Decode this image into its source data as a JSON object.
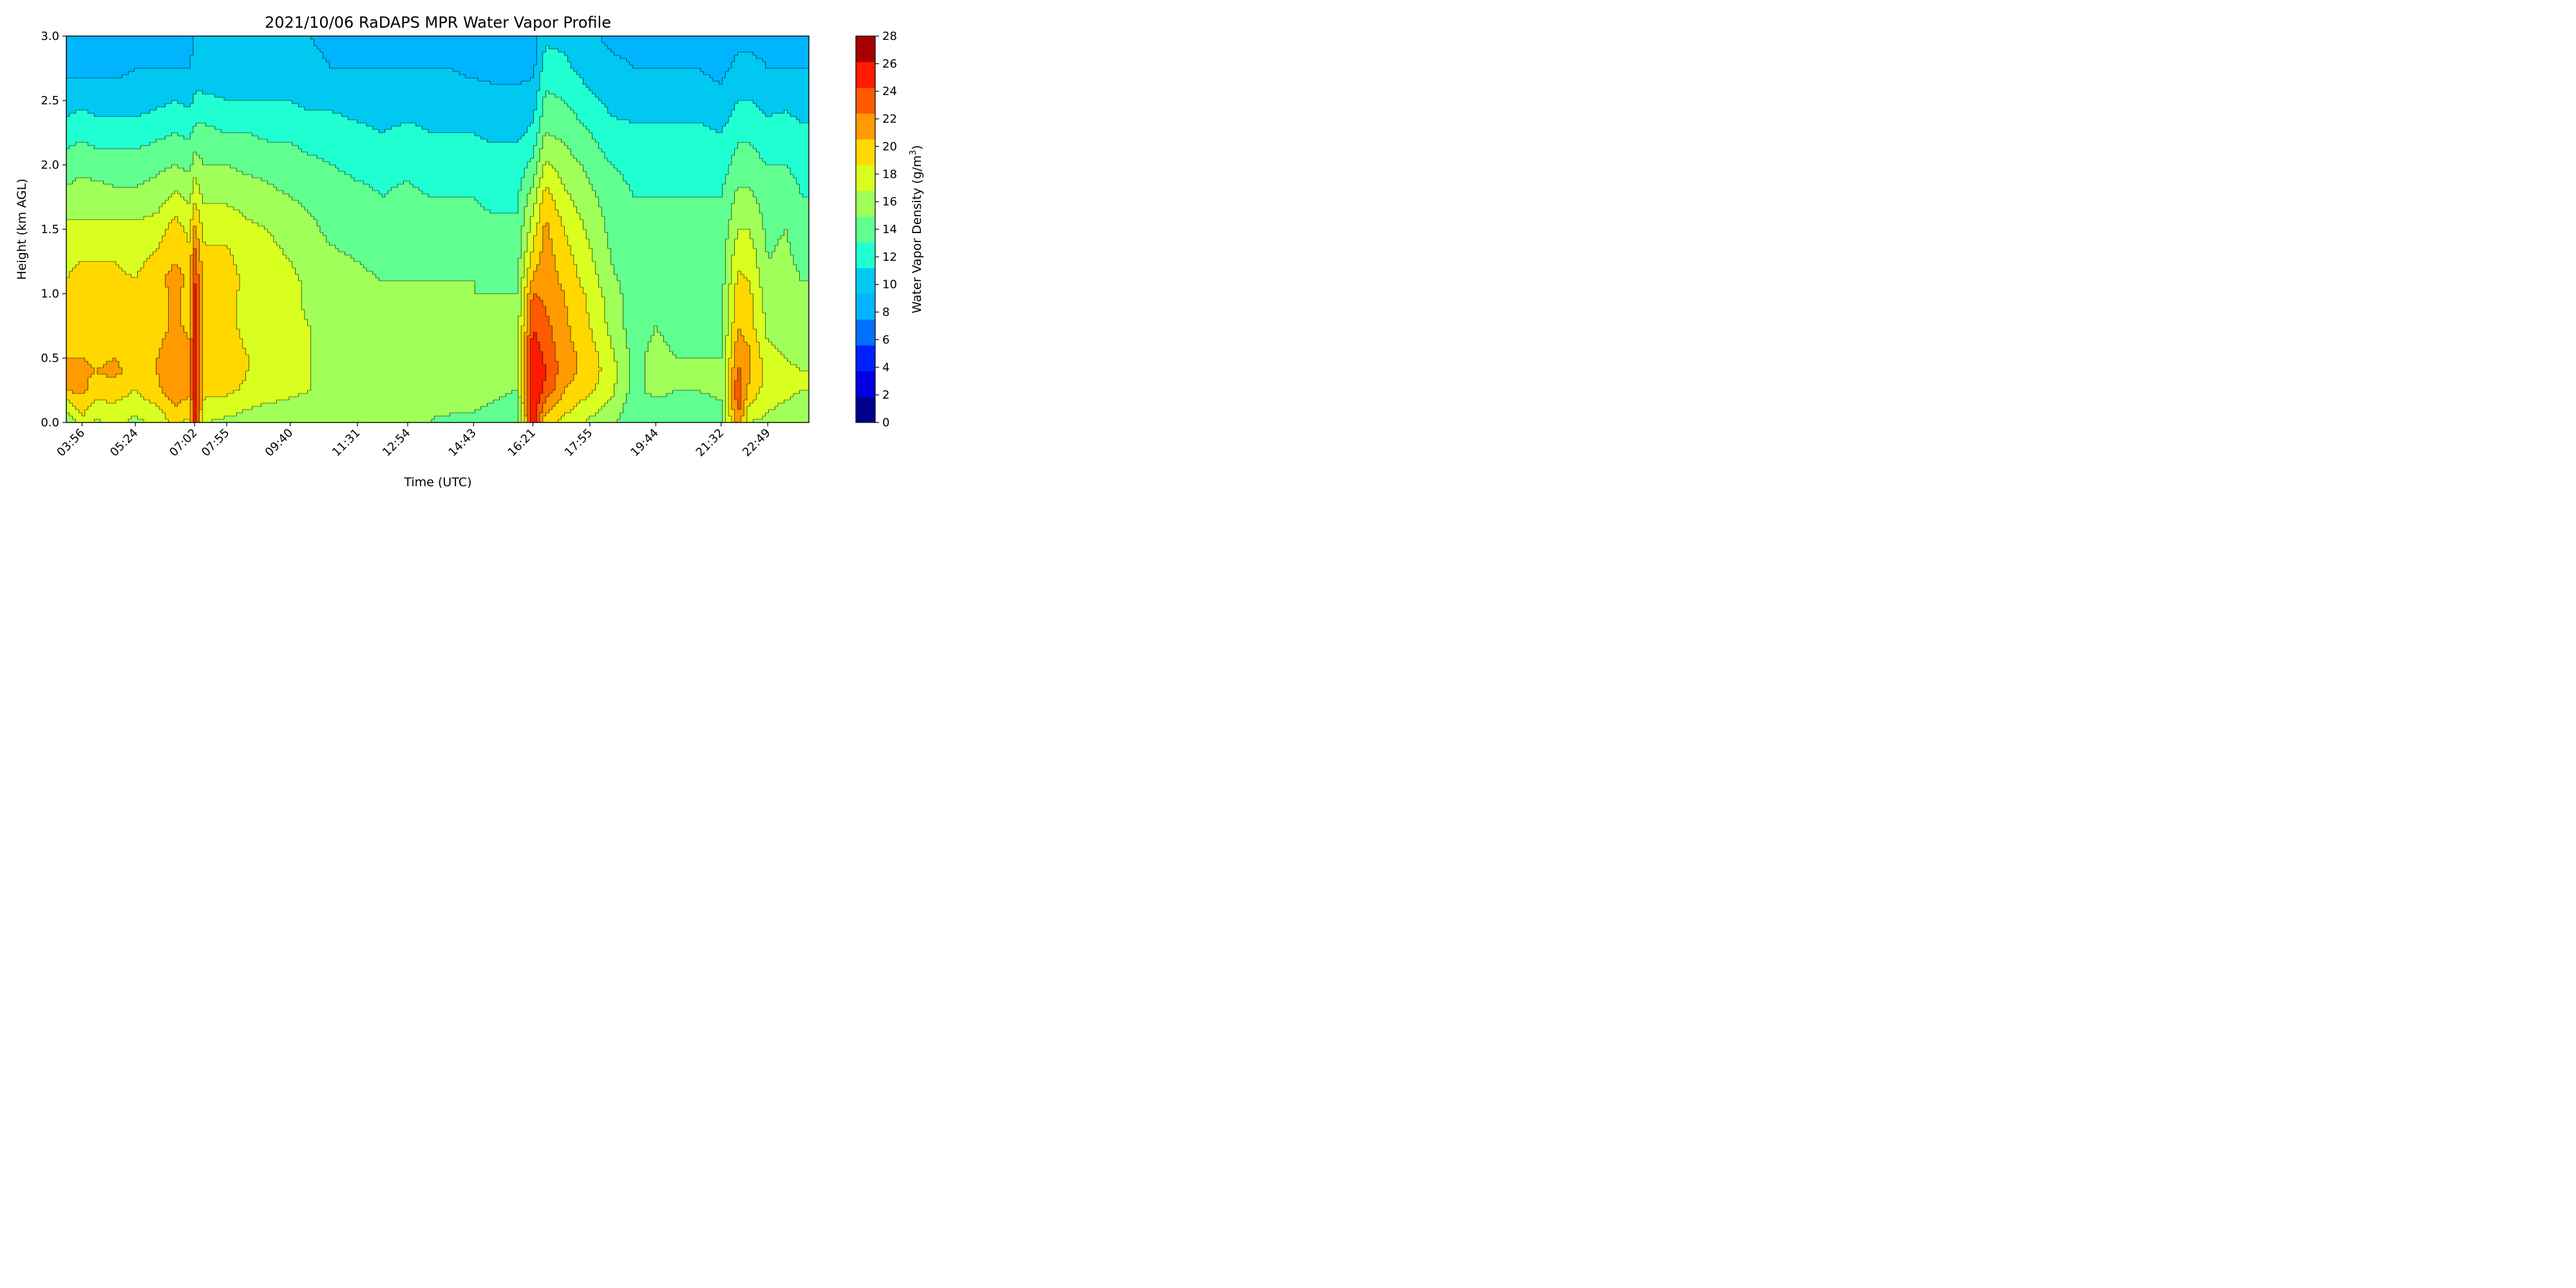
{
  "chart_data": {
    "type": "heatmap",
    "subtype": "filled-contour",
    "title": "2021/10/06 RaDAPS MPR Water Vapor Profile",
    "xlabel": "Time (UTC)",
    "ylabel": "Height (km AGL)",
    "ylim": [
      0.0,
      3.0
    ],
    "xlim": [
      "03:30",
      "23:57"
    ],
    "x_tick_labels": [
      "03:56",
      "05:24",
      "07:02",
      "07:55",
      "09:40",
      "11:31",
      "12:54",
      "14:43",
      "16:21",
      "17:55",
      "19:44",
      "21:32",
      "22:49"
    ],
    "y_tick_labels": [
      "0.0",
      "0.5",
      "1.0",
      "1.5",
      "2.0",
      "2.5",
      "3.0"
    ],
    "grid": false,
    "colorbar": {
      "label_main": "Water Vapor Density (g/m",
      "label_sup": "3",
      "label_end": ")",
      "levels": [
        0,
        2,
        4,
        6,
        8,
        10,
        12,
        14,
        16,
        18,
        20,
        22,
        24,
        26,
        28
      ],
      "tick_labels": [
        "0",
        "2",
        "4",
        "6",
        "8",
        "10",
        "12",
        "14",
        "16",
        "18",
        "20",
        "22",
        "24",
        "26",
        "28"
      ],
      "colors": [
        "#00008b",
        "#0000e0",
        "#0020ff",
        "#0070ff",
        "#00b4ff",
        "#00c8f0",
        "#20ffd2",
        "#60ff90",
        "#a0ff58",
        "#d8ff20",
        "#ffd800",
        "#ff9a00",
        "#ff5a00",
        "#ff1a00",
        "#a80000"
      ],
      "colormap": "jet"
    },
    "profiles_hour_UTC": [
      3.5,
      3.93,
      4.3,
      4.8,
      5.4,
      6.0,
      6.5,
      6.9,
      7.03,
      7.3,
      7.92,
      8.5,
      9.0,
      9.67,
      10.2,
      10.8,
      11.52,
      12.2,
      12.9,
      13.5,
      14.1,
      14.72,
      15.3,
      15.9,
      16.35,
      16.7,
      17.2,
      17.92,
      18.5,
      19.1,
      19.73,
      20.3,
      20.9,
      21.53,
      22.0,
      22.3,
      22.82,
      23.3,
      23.75
    ],
    "heights_km": [
      0.0,
      0.25,
      0.4,
      0.5,
      0.75,
      1.0,
      1.1,
      1.25,
      1.5,
      1.75,
      2.0,
      2.25,
      2.5,
      2.75,
      3.0
    ],
    "density_g_m3": [
      [
        15.5,
        22.0,
        22.5,
        22.0,
        20.5,
        20.0,
        20.0,
        19.5,
        18.5,
        16.5,
        15.0,
        13.0,
        11.0,
        9.5,
        9.0
      ],
      [
        19.5,
        22.5,
        22.5,
        22.0,
        20.5,
        21.0,
        21.5,
        20.0,
        18.5,
        17.0,
        15.5,
        13.5,
        11.5,
        9.5,
        9.0
      ],
      [
        17.5,
        21.0,
        22.0,
        21.5,
        20.5,
        20.5,
        21.0,
        20.0,
        18.5,
        17.0,
        15.0,
        13.0,
        11.0,
        9.5,
        9.0
      ],
      [
        18.5,
        21.0,
        22.5,
        22.0,
        20.5,
        20.0,
        20.5,
        20.0,
        18.5,
        16.5,
        15.0,
        13.0,
        11.0,
        9.5,
        9.0
      ],
      [
        17.5,
        20.0,
        21.5,
        21.0,
        20.0,
        20.0,
        20.0,
        19.5,
        18.5,
        16.5,
        15.0,
        13.0,
        11.0,
        10.0,
        9.5
      ],
      [
        18.5,
        21.5,
        22.0,
        22.0,
        21.0,
        21.0,
        21.5,
        20.5,
        19.0,
        17.0,
        15.5,
        13.5,
        11.5,
        10.0,
        9.5
      ],
      [
        20.5,
        23.5,
        24.0,
        23.5,
        22.5,
        22.5,
        23.0,
        22.0,
        21.0,
        18.5,
        16.0,
        14.0,
        12.0,
        10.0,
        9.5
      ],
      [
        19.5,
        22.5,
        23.0,
        22.5,
        21.5,
        21.0,
        21.5,
        20.5,
        19.5,
        17.5,
        15.5,
        13.5,
        11.5,
        10.0,
        9.5
      ],
      [
        27.0,
        28.0,
        28.0,
        27.5,
        27.0,
        26.5,
        26.0,
        25.0,
        22.5,
        19.5,
        17.0,
        14.5,
        12.5,
        10.5,
        10.0
      ],
      [
        18.0,
        20.5,
        21.5,
        21.0,
        20.5,
        20.5,
        21.0,
        20.5,
        19.5,
        17.5,
        16.0,
        14.5,
        12.5,
        10.5,
        10.0
      ],
      [
        17.5,
        20.5,
        21.5,
        21.0,
        20.5,
        20.5,
        21.0,
        20.5,
        19.5,
        17.5,
        16.0,
        14.0,
        12.0,
        10.5,
        10.0
      ],
      [
        17.0,
        19.5,
        20.0,
        20.0,
        19.5,
        19.5,
        19.5,
        19.0,
        18.5,
        17.0,
        15.5,
        14.0,
        12.0,
        10.5,
        10.0
      ],
      [
        16.5,
        19.0,
        19.5,
        19.0,
        19.0,
        19.0,
        19.0,
        18.5,
        18.0,
        16.5,
        15.5,
        13.5,
        12.0,
        10.5,
        10.0
      ],
      [
        16.5,
        18.5,
        18.5,
        18.5,
        18.5,
        18.5,
        18.5,
        18.0,
        17.5,
        16.0,
        15.0,
        13.5,
        12.0,
        10.5,
        10.0
      ],
      [
        16.5,
        18.0,
        18.0,
        18.0,
        18.0,
        17.5,
        17.5,
        17.0,
        16.5,
        15.5,
        14.5,
        13.0,
        11.5,
        10.5,
        10.0
      ],
      [
        16.0,
        17.5,
        17.5,
        17.5,
        17.5,
        17.0,
        17.0,
        16.5,
        15.5,
        15.0,
        14.0,
        13.0,
        11.5,
        10.0,
        9.5
      ],
      [
        16.0,
        17.0,
        17.0,
        17.0,
        17.0,
        16.5,
        16.5,
        16.0,
        15.0,
        14.5,
        13.5,
        12.5,
        11.0,
        10.0,
        9.5
      ],
      [
        16.0,
        17.0,
        17.0,
        17.0,
        17.0,
        16.5,
        16.0,
        15.5,
        14.5,
        14.0,
        13.5,
        12.0,
        11.0,
        10.0,
        9.5
      ],
      [
        16.0,
        17.0,
        17.0,
        17.0,
        17.0,
        16.5,
        16.0,
        15.5,
        15.0,
        14.5,
        13.5,
        12.5,
        11.0,
        10.0,
        9.5
      ],
      [
        16.0,
        16.5,
        16.5,
        16.5,
        16.5,
        16.0,
        16.0,
        15.5,
        14.5,
        14.0,
        13.0,
        12.0,
        11.0,
        10.0,
        9.5
      ],
      [
        15.5,
        17.5,
        18.0,
        18.0,
        17.5,
        16.5,
        16.0,
        15.5,
        14.5,
        14.0,
        13.0,
        12.0,
        11.0,
        10.0,
        9.0
      ],
      [
        15.5,
        17.0,
        17.5,
        17.5,
        16.5,
        16.0,
        16.0,
        15.0,
        14.5,
        14.0,
        13.0,
        12.0,
        11.0,
        9.5,
        9.0
      ],
      [
        15.0,
        16.5,
        17.0,
        17.0,
        16.5,
        16.0,
        15.5,
        15.0,
        14.5,
        13.5,
        13.0,
        11.5,
        10.5,
        9.5,
        9.0
      ],
      [
        14.5,
        16.0,
        16.5,
        16.5,
        16.5,
        16.0,
        15.5,
        15.0,
        14.5,
        13.5,
        13.0,
        11.5,
        10.5,
        9.5,
        9.0
      ],
      [
        27.5,
        28.0,
        28.0,
        27.5,
        26.0,
        24.0,
        22.5,
        21.0,
        19.0,
        17.0,
        14.5,
        12.5,
        11.0,
        9.5,
        9.0
      ],
      [
        20.5,
        25.5,
        26.0,
        25.5,
        24.5,
        23.5,
        23.5,
        23.0,
        22.5,
        21.0,
        18.5,
        16.0,
        14.5,
        13.0,
        11.5
      ],
      [
        19.5,
        22.0,
        23.0,
        23.0,
        22.5,
        22.0,
        21.5,
        21.0,
        20.0,
        18.5,
        17.0,
        15.5,
        14.0,
        12.5,
        11.5
      ],
      [
        17.5,
        20.5,
        21.0,
        21.0,
        20.0,
        19.5,
        19.0,
        18.5,
        17.5,
        16.5,
        15.5,
        14.0,
        12.5,
        11.0,
        10.5
      ],
      [
        16.5,
        18.5,
        19.0,
        18.5,
        17.5,
        17.0,
        16.5,
        16.0,
        15.5,
        15.0,
        14.0,
        12.5,
        11.5,
        10.5,
        9.5
      ],
      [
        14.5,
        15.5,
        15.5,
        15.5,
        15.0,
        15.0,
        15.0,
        14.5,
        14.5,
        14.0,
        13.5,
        12.5,
        11.0,
        10.0,
        9.5
      ],
      [
        14.5,
        16.5,
        16.5,
        16.5,
        16.0,
        15.5,
        15.5,
        15.0,
        14.5,
        14.0,
        13.5,
        12.5,
        11.0,
        10.0,
        9.5
      ],
      [
        14.5,
        16.0,
        16.0,
        16.0,
        15.5,
        15.5,
        15.0,
        15.0,
        14.5,
        14.0,
        13.5,
        12.5,
        11.0,
        10.0,
        9.5
      ],
      [
        14.5,
        16.0,
        16.5,
        16.0,
        15.5,
        15.0,
        15.0,
        14.5,
        14.5,
        14.0,
        13.5,
        12.5,
        11.0,
        10.0,
        9.5
      ],
      [
        15.0,
        16.5,
        16.5,
        16.0,
        15.5,
        15.5,
        15.0,
        15.0,
        14.5,
        14.0,
        13.0,
        12.0,
        10.5,
        9.5,
        9.0
      ],
      [
        24.0,
        25.5,
        24.5,
        23.5,
        22.0,
        21.0,
        20.5,
        19.5,
        18.0,
        16.5,
        15.0,
        13.5,
        12.0,
        10.5,
        9.5
      ],
      [
        18.0,
        21.5,
        22.5,
        22.5,
        21.0,
        20.5,
        20.0,
        19.5,
        18.0,
        16.5,
        15.0,
        13.5,
        12.0,
        10.5,
        9.5
      ],
      [
        17.5,
        19.0,
        19.0,
        18.5,
        17.5,
        17.0,
        16.5,
        16.0,
        15.5,
        15.0,
        14.0,
        12.5,
        11.5,
        10.0,
        9.5
      ],
      [
        17.0,
        18.5,
        18.5,
        18.0,
        17.5,
        17.0,
        17.0,
        16.5,
        16.0,
        15.0,
        14.0,
        13.0,
        11.5,
        10.0,
        9.5
      ],
      [
        16.5,
        18.0,
        18.0,
        17.5,
        17.0,
        16.5,
        16.0,
        15.5,
        15.0,
        14.0,
        13.5,
        12.5,
        11.0,
        10.0,
        9.5
      ]
    ]
  }
}
